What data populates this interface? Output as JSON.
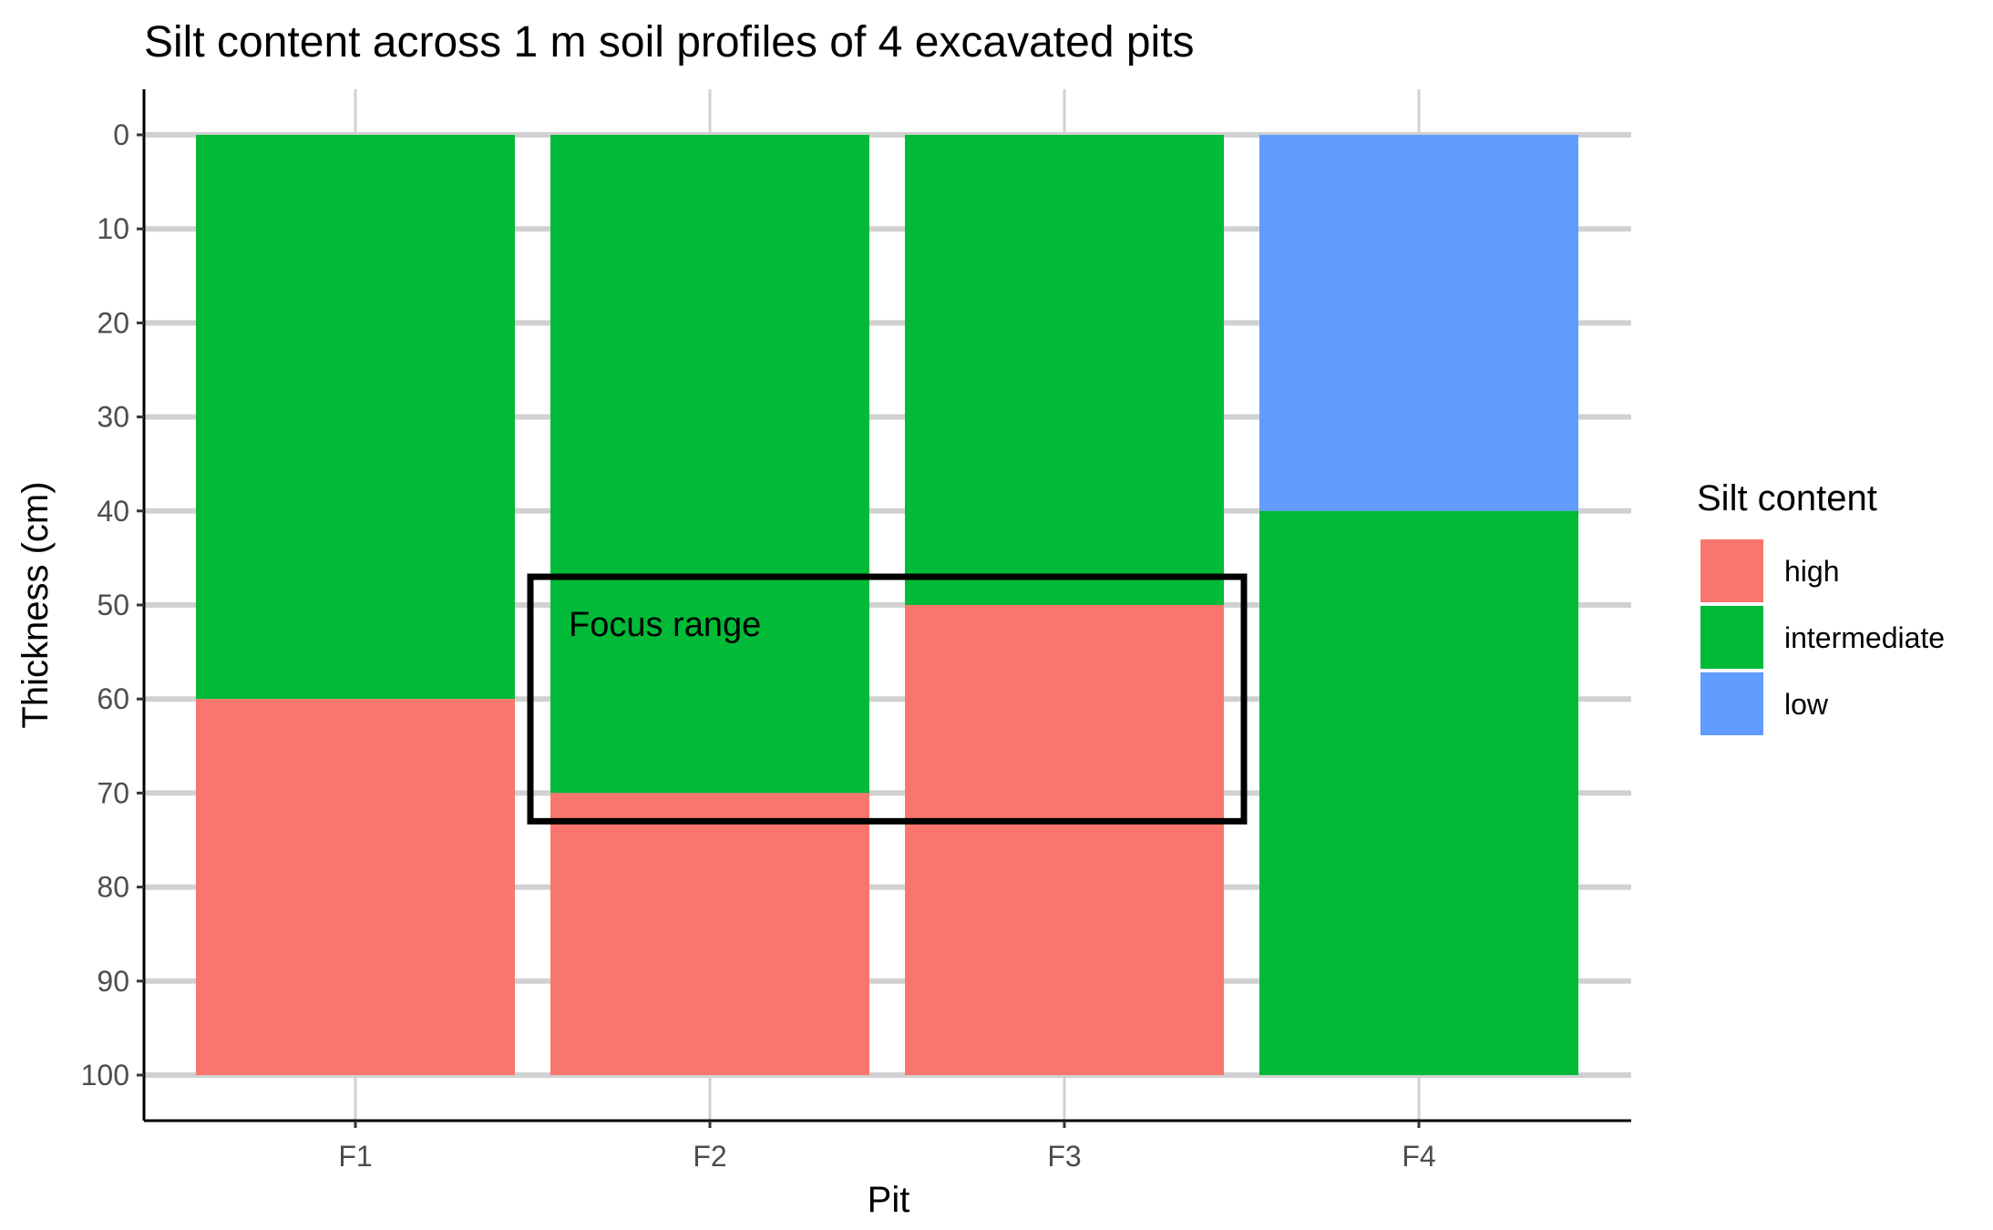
{
  "chart_data": {
    "type": "bar",
    "title": "Silt content across 1 m soil profiles of 4 excavated pits",
    "xlabel": "Pit",
    "ylabel": "Thickness (cm)",
    "categories": [
      "F1",
      "F2",
      "F3",
      "F4"
    ],
    "ylim": [
      0,
      100
    ],
    "y_reversed": true,
    "y_ticks": [
      "0",
      "10",
      "20",
      "30",
      "40",
      "50",
      "60",
      "70",
      "80",
      "90",
      "100"
    ],
    "grid": true,
    "legend": {
      "title": "Silt content",
      "position": "right",
      "entries": [
        {
          "label": "high",
          "color": "#F8766D"
        },
        {
          "label": "intermediate",
          "color": "#00BA38"
        },
        {
          "label": "low",
          "color": "#619CFF"
        }
      ]
    },
    "segments": [
      {
        "pit": "F1",
        "class": "intermediate",
        "top": 0,
        "bottom": 60
      },
      {
        "pit": "F1",
        "class": "high",
        "top": 60,
        "bottom": 100
      },
      {
        "pit": "F2",
        "class": "intermediate",
        "top": 0,
        "bottom": 70
      },
      {
        "pit": "F2",
        "class": "high",
        "top": 70,
        "bottom": 100
      },
      {
        "pit": "F3",
        "class": "intermediate",
        "top": 0,
        "bottom": 20
      },
      {
        "pit": "F3",
        "class": "intermediate",
        "top": 20,
        "bottom": 50
      },
      {
        "pit": "F3",
        "class": "high",
        "top": 50,
        "bottom": 100
      },
      {
        "pit": "F4",
        "class": "low",
        "top": 0,
        "bottom": 40
      },
      {
        "pit": "F4",
        "class": "intermediate",
        "top": 40,
        "bottom": 100
      }
    ],
    "annotation": {
      "text": "Focus range",
      "x_from": "F2",
      "x_to": "F3",
      "y_from": 47,
      "y_to": 73
    }
  }
}
